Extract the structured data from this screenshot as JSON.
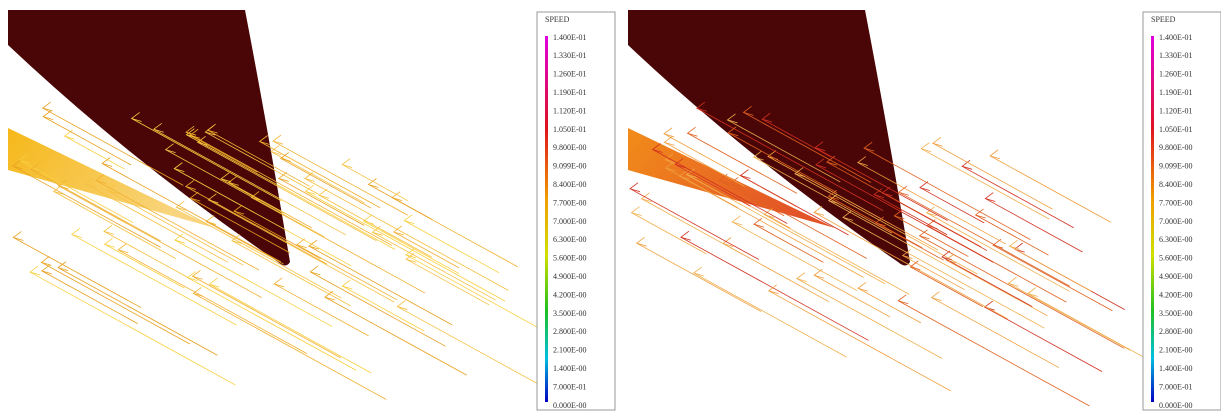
{
  "panels": [
    {
      "legend": {
        "title": "SPEED",
        "labels": [
          "1.400E-01",
          "1.330E-01",
          "1.260E-01",
          "1.190E-01",
          "1.120E-01",
          "1.050E-01",
          "9.800E-00",
          "9.099E-00",
          "8.400E-00",
          "7.700E-00",
          "7.000E-00",
          "6.300E-00",
          "5.600E-00",
          "4.900E-00",
          "4.200E-00",
          "3.500E-00",
          "2.800E-00",
          "2.100E-00",
          "1.400E-00",
          "7.000E-01",
          "0.000E-00"
        ]
      }
    },
    {
      "legend": {
        "title": "SPEED",
        "labels": [
          "1.400E-01",
          "1.330E-01",
          "1.260E-01",
          "1.190E-01",
          "1.120E-01",
          "1.050E-01",
          "9.800E-00",
          "9.099E-00",
          "8.400E-00",
          "7.700E-00",
          "7.000E-00",
          "6.300E-00",
          "5.600E-00",
          "4.900E-00",
          "4.200E-00",
          "3.500E-00",
          "2.800E-00",
          "2.100E-00",
          "1.400E-00",
          "7.000E-01",
          "0.000E-00"
        ]
      }
    }
  ]
}
